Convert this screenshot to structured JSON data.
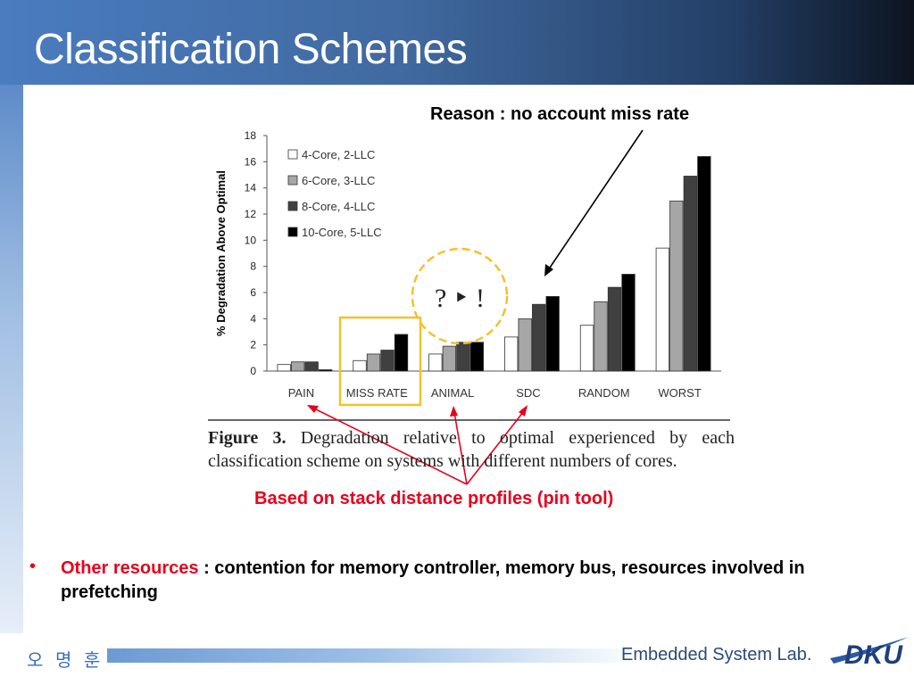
{
  "slide": {
    "title": "Classification Schemes",
    "reason_note": "Reason : no account miss rate",
    "bottom_note": "Based on stack distance profiles (pin tool)",
    "question_marks": "? ‣ !",
    "bullet": {
      "marker": "•",
      "highlight": "Other resources",
      "text": " : contention for memory controller, memory bus, resources involved in prefetching"
    },
    "caption": {
      "label": "Figure 3.",
      "text": "Degradation relative to optimal experienced by each classification scheme on systems with different numbers of cores."
    },
    "footer": {
      "author": "오 명 훈",
      "lab": "Embedded System Lab.",
      "logo_text": "DKU"
    }
  },
  "colors": {
    "accent_red": "#e8001c",
    "highlight_box": "#f2c12e",
    "title_bar": "#40699f"
  },
  "chart_data": {
    "type": "bar",
    "ylabel": "% Degradation Above Optimal",
    "ylim": [
      0,
      18
    ],
    "yticks": [
      0,
      2,
      4,
      6,
      8,
      10,
      12,
      14,
      16,
      18
    ],
    "categories": [
      "PAIN",
      "MISS RATE",
      "ANIMAL",
      "SDC",
      "RANDOM",
      "WORST"
    ],
    "legend_position": "top-left",
    "series": [
      {
        "name": "4-Core, 2-LLC",
        "color": "#ffffff",
        "values": [
          0.5,
          0.8,
          1.3,
          2.6,
          3.5,
          9.4
        ]
      },
      {
        "name": "6-Core, 3-LLC",
        "color": "#a6a6a6",
        "values": [
          0.7,
          1.3,
          1.9,
          4.0,
          5.3,
          13.0
        ]
      },
      {
        "name": "8-Core, 4-LLC",
        "color": "#404040",
        "values": [
          0.7,
          1.6,
          2.2,
          5.1,
          6.4,
          14.9
        ]
      },
      {
        "name": "10-Core, 5-LLC",
        "color": "#000000",
        "values": [
          0.1,
          2.8,
          2.2,
          5.7,
          7.4,
          16.4
        ]
      }
    ]
  }
}
